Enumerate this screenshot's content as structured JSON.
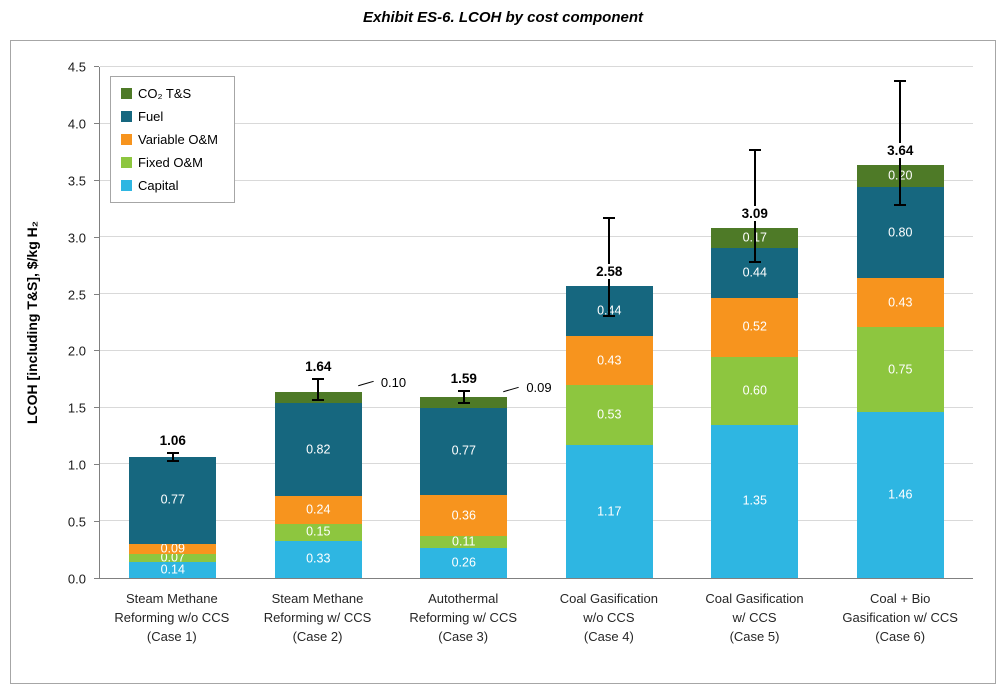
{
  "chart_data": {
    "type": "bar",
    "stacked": true,
    "title": "Exhibit ES-6. LCOH by cost component",
    "ylabel": "LCOH [including T&S], $/kg H₂",
    "ylim": [
      0,
      4.5
    ],
    "ytick_step": 0.5,
    "grid": true,
    "legend_position": "top-left",
    "legend_order": [
      "CO₂ T&S",
      "Fuel",
      "Variable O&M",
      "Fixed O&M",
      "Capital"
    ],
    "categories": [
      [
        "Steam Methane",
        "Reforming w/o CCS",
        "(Case 1)"
      ],
      [
        "Steam Methane",
        "Reforming w/ CCS",
        "(Case 2)"
      ],
      [
        "Autothermal",
        "Reforming w/ CCS",
        "(Case 3)"
      ],
      [
        "Coal Gasification",
        "w/o CCS",
        "(Case 4)"
      ],
      [
        "Coal Gasification",
        "w/ CCS",
        "(Case 5)"
      ],
      [
        "Coal + Bio",
        "Gasification w/ CCS",
        "(Case 6)"
      ]
    ],
    "series": [
      {
        "name": "Capital",
        "color": "#2eb6e2",
        "values": [
          0.14,
          0.33,
          0.26,
          1.17,
          1.35,
          1.46
        ]
      },
      {
        "name": "Fixed O&M",
        "color": "#8dc63f",
        "values": [
          0.07,
          0.15,
          0.11,
          0.53,
          0.6,
          0.75
        ]
      },
      {
        "name": "Variable O&M",
        "color": "#f7941e",
        "values": [
          0.09,
          0.24,
          0.36,
          0.43,
          0.52,
          0.43
        ]
      },
      {
        "name": "Fuel",
        "color": "#16677f",
        "values": [
          0.77,
          0.82,
          0.77,
          0.44,
          0.44,
          0.8
        ]
      },
      {
        "name": "CO₂ T&S",
        "color": "#4e7a27",
        "values": [
          0,
          0.1,
          0.09,
          0,
          0.17,
          0.2
        ]
      }
    ],
    "totals": [
      "1.06",
      "1.64",
      "1.59",
      "2.58",
      "3.09",
      "3.64"
    ],
    "error_low": [
      1.02,
      1.56,
      1.53,
      2.3,
      2.77,
      3.28
    ],
    "error_high": [
      1.1,
      1.75,
      1.65,
      3.17,
      3.77,
      4.38
    ],
    "callouts": [
      {
        "case_index": 1,
        "series": "CO₂ T&S",
        "label": "0.10"
      },
      {
        "case_index": 2,
        "series": "CO₂ T&S",
        "label": "0.09"
      }
    ],
    "colors": {
      "gridline": "#d9d9d9",
      "axis": "#808080",
      "frame_border": "#a6a6a6",
      "error_bar": "#000000",
      "segment_label_text": "#ffffff"
    }
  }
}
